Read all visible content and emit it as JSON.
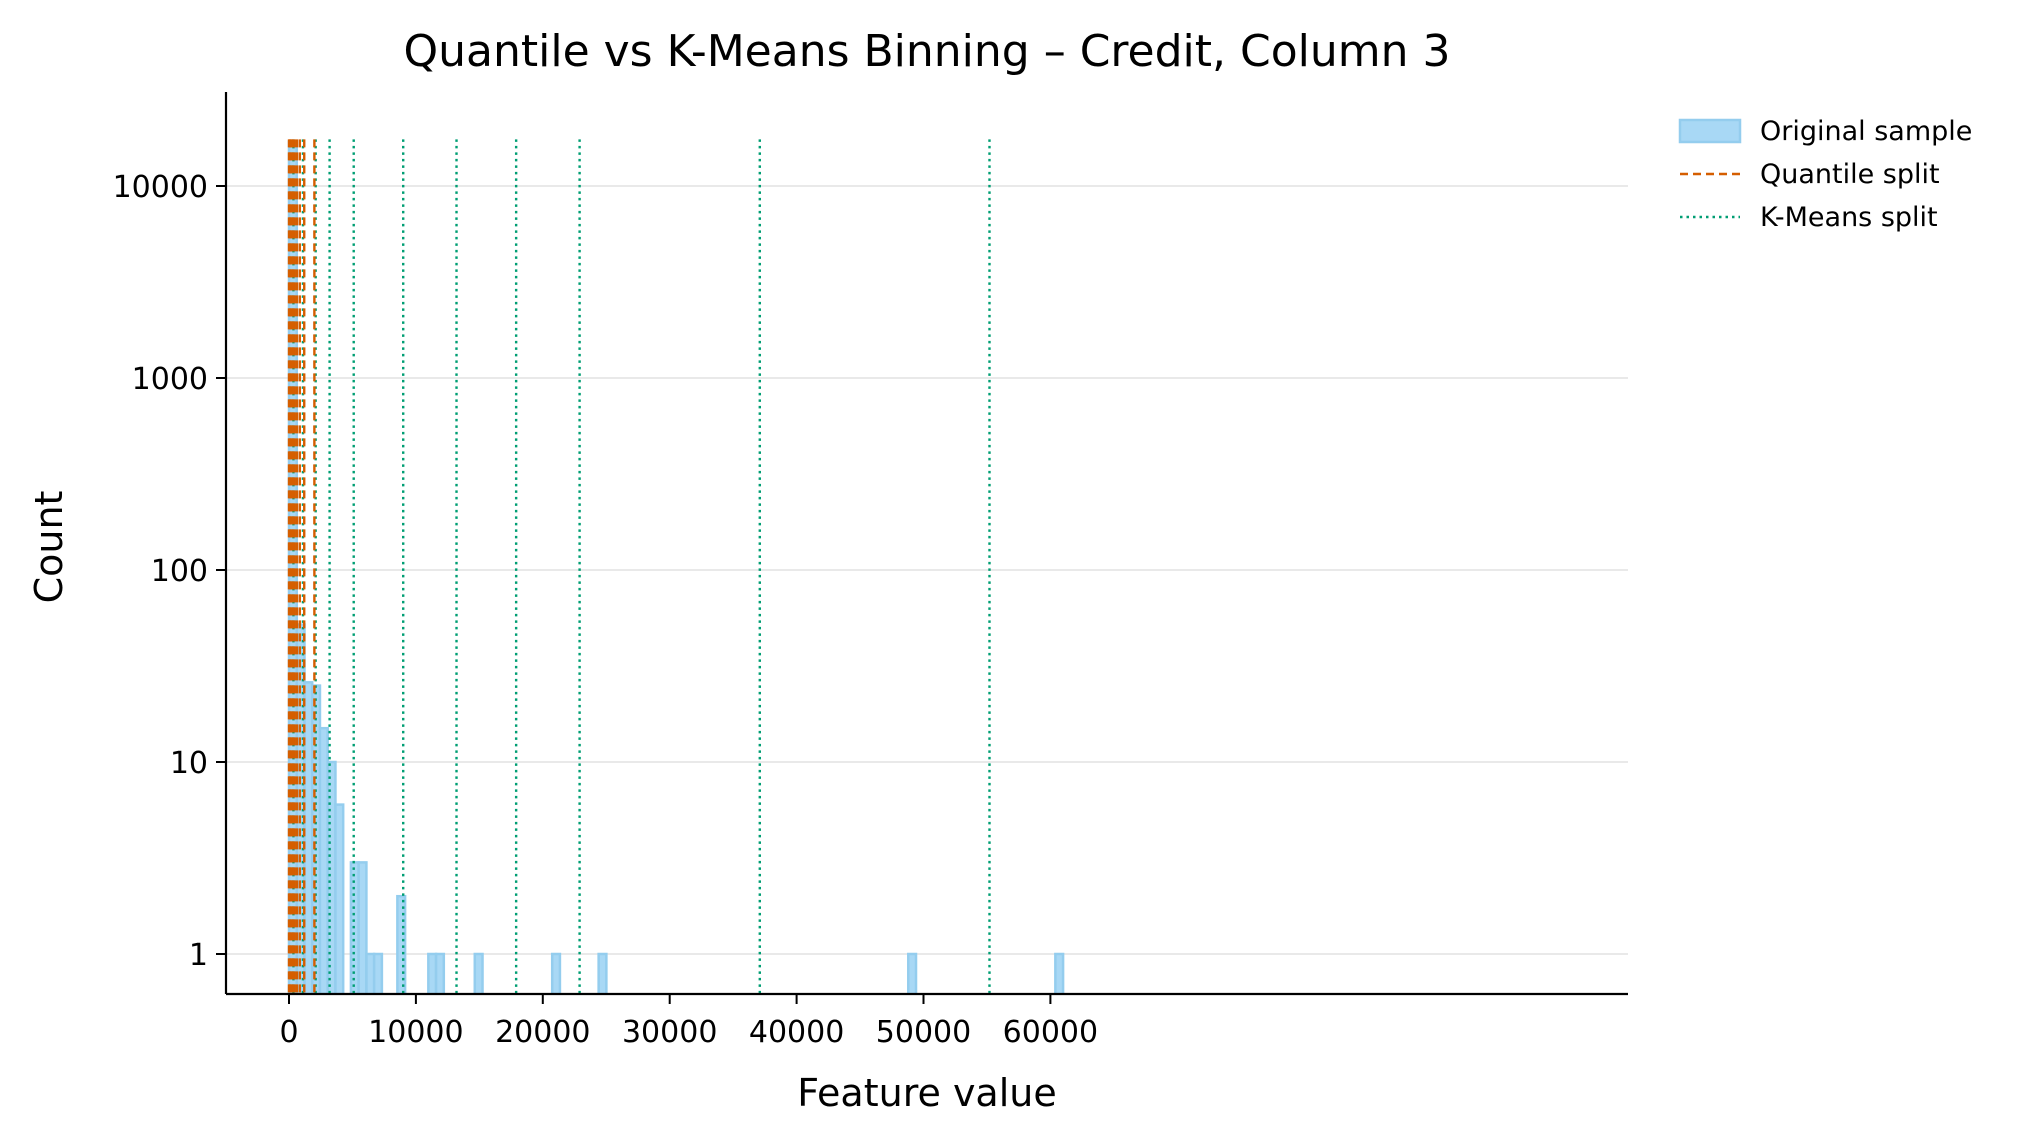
{
  "chart_data": {
    "type": "histogram",
    "title": "Quantile vs K-Means Binning – Credit, Column 3",
    "xlabel": "Feature value",
    "ylabel": "Count",
    "xlim": [
      -3000,
      64000
    ],
    "ylim": [
      0.6,
      28000
    ],
    "yscale": "log",
    "x_ticks": [
      0,
      10000,
      20000,
      30000,
      40000,
      50000,
      60000
    ],
    "x_tick_labels": [
      "0",
      "10000",
      "20000",
      "30000",
      "40000",
      "50000",
      "60000"
    ],
    "y_ticks": [
      1,
      10,
      100,
      1000,
      10000
    ],
    "y_tick_labels": [
      "1",
      "10",
      "100",
      "1000",
      "10000"
    ],
    "grid": "horizontal",
    "legend_position": "outside-top-right",
    "series": [
      {
        "name": "Original sample",
        "kind": "step-histogram",
        "color": "#a8d8f5",
        "edge_color": "#94cdee",
        "bins": [
          {
            "x0": 0,
            "x1": 610,
            "count": 17000
          },
          {
            "x0": 610,
            "x1": 1220,
            "count": 52
          },
          {
            "x0": 1220,
            "x1": 1830,
            "count": 26
          },
          {
            "x0": 1830,
            "x1": 2440,
            "count": 25
          },
          {
            "x0": 2440,
            "x1": 3050,
            "count": 15
          },
          {
            "x0": 3050,
            "x1": 3660,
            "count": 10
          },
          {
            "x0": 3660,
            "x1": 4270,
            "count": 6
          },
          {
            "x0": 4270,
            "x1": 4880,
            "count": 0
          },
          {
            "x0": 4880,
            "x1": 5490,
            "count": 3
          },
          {
            "x0": 5490,
            "x1": 6100,
            "count": 3
          },
          {
            "x0": 6100,
            "x1": 6710,
            "count": 1
          },
          {
            "x0": 6710,
            "x1": 7320,
            "count": 1
          },
          {
            "x0": 8540,
            "x1": 9150,
            "count": 2
          },
          {
            "x0": 10980,
            "x1": 11590,
            "count": 1
          },
          {
            "x0": 11590,
            "x1": 12200,
            "count": 1
          },
          {
            "x0": 14640,
            "x1": 15250,
            "count": 1
          },
          {
            "x0": 20740,
            "x1": 21350,
            "count": 1
          },
          {
            "x0": 24400,
            "x1": 25010,
            "count": 1
          },
          {
            "x0": 48800,
            "x1": 49410,
            "count": 1
          },
          {
            "x0": 60390,
            "x1": 61000,
            "count": 1
          }
        ]
      },
      {
        "name": "Quantile split",
        "kind": "vlines",
        "color": "#d55e00",
        "dash": "dashed",
        "x": [
          0,
          60,
          130,
          220,
          320,
          450,
          620,
          850,
          1200,
          2000
        ]
      },
      {
        "name": "K-Means split",
        "kind": "vlines",
        "color": "#009e73",
        "dash": "dotted",
        "x": [
          350,
          1100,
          2100,
          3200,
          5100,
          9000,
          13200,
          17900,
          22900,
          37100,
          55200
        ]
      }
    ]
  }
}
